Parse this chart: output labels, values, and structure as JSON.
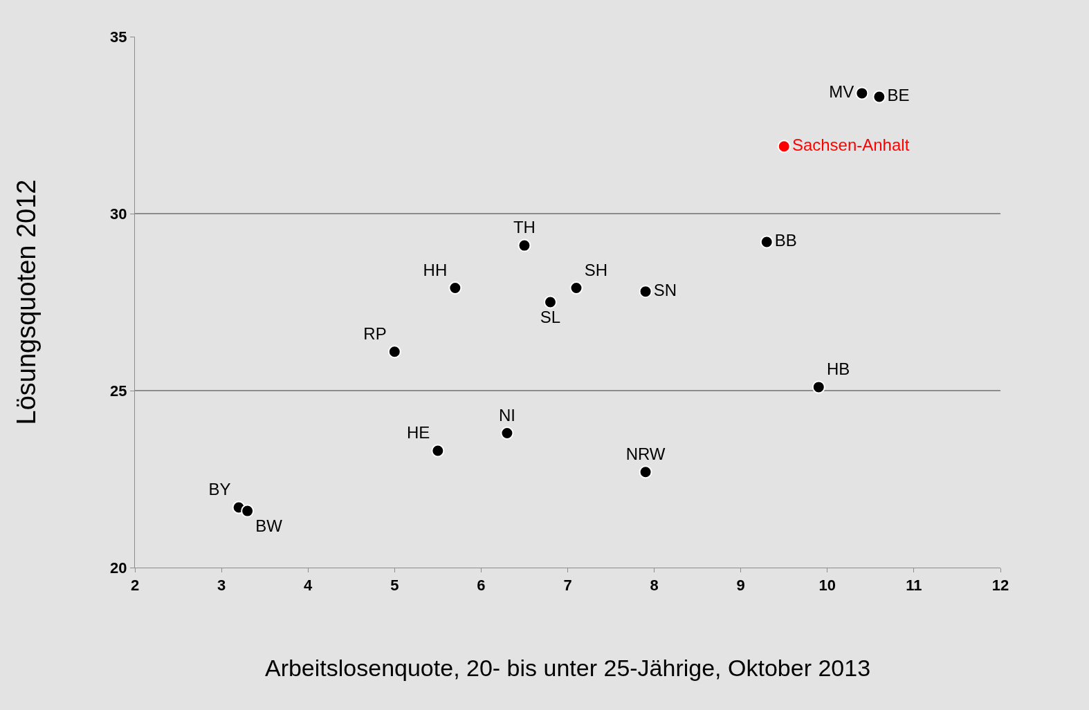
{
  "chart_data": {
    "type": "scatter",
    "xlabel": "Arbeitslosenquote, 20- bis unter 25-Jährige, Oktober 2013",
    "ylabel": "Lösungsquoten 2012",
    "xlim": [
      2,
      12
    ],
    "xticks": [
      2,
      3,
      4,
      5,
      6,
      7,
      8,
      9,
      10,
      11,
      12
    ],
    "ylim": [
      20,
      35
    ],
    "yticks": [
      20,
      25,
      30,
      35
    ],
    "grid": "y",
    "legend": false,
    "marker": "circle",
    "series": [
      {
        "name": "MV",
        "color": "#000000",
        "x": [
          10.4
        ],
        "values": [
          33.4
        ]
      },
      {
        "name": "BE",
        "color": "#000000",
        "x": [
          10.6
        ],
        "values": [
          33.3
        ]
      },
      {
        "name": "Sachsen-Anhalt",
        "color": "#ff0000",
        "x": [
          9.5
        ],
        "values": [
          31.9
        ]
      },
      {
        "name": "BB",
        "color": "#000000",
        "x": [
          9.3
        ],
        "values": [
          29.2
        ]
      },
      {
        "name": "TH",
        "color": "#000000",
        "x": [
          6.5
        ],
        "values": [
          29.1
        ]
      },
      {
        "name": "HH",
        "color": "#000000",
        "x": [
          5.7
        ],
        "values": [
          27.9
        ]
      },
      {
        "name": "SH",
        "color": "#000000",
        "x": [
          7.1
        ],
        "values": [
          27.9
        ]
      },
      {
        "name": "SN",
        "color": "#000000",
        "x": [
          7.9
        ],
        "values": [
          27.8
        ]
      },
      {
        "name": "SL",
        "color": "#000000",
        "x": [
          6.8
        ],
        "values": [
          27.5
        ]
      },
      {
        "name": "RP",
        "color": "#000000",
        "x": [
          5.0
        ],
        "values": [
          26.1
        ]
      },
      {
        "name": "HB",
        "color": "#000000",
        "x": [
          9.9
        ],
        "values": [
          25.1
        ]
      },
      {
        "name": "NI",
        "color": "#000000",
        "x": [
          6.3
        ],
        "values": [
          23.8
        ]
      },
      {
        "name": "HE",
        "color": "#000000",
        "x": [
          5.5
        ],
        "values": [
          23.3
        ]
      },
      {
        "name": "NRW",
        "color": "#000000",
        "x": [
          7.9
        ],
        "values": [
          22.7
        ]
      },
      {
        "name": "BY",
        "color": "#000000",
        "x": [
          3.2
        ],
        "values": [
          21.7
        ]
      },
      {
        "name": "BW",
        "color": "#000000",
        "x": [
          3.3
        ],
        "values": [
          21.6
        ]
      }
    ]
  }
}
